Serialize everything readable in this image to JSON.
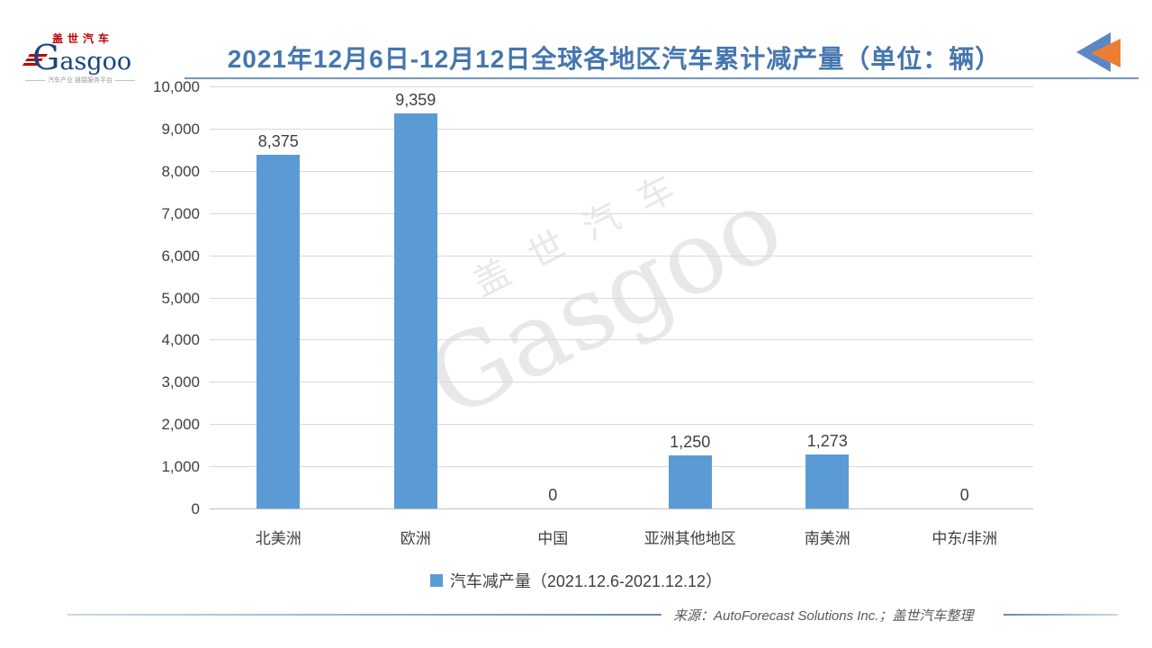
{
  "header": {
    "logo": {
      "cn": "盖世汽车",
      "en_initial": "G",
      "en_rest": "asgoo",
      "tagline": "汽车产业 链接服务平台"
    },
    "title": "2021年12月6日-12月12日全球各地区汽车累计减产量（单位：辆）",
    "colors": {
      "title": "#4576AE",
      "underline": "#7195BE",
      "arrow_blue": "#5B87C5",
      "arrow_orange": "#ED7D31"
    }
  },
  "chart_data": {
    "type": "bar",
    "title": "2021年12月6日-12月12日全球各地区汽车累计减产量（单位：辆）",
    "categories": [
      "北美洲",
      "欧洲",
      "中国",
      "亚洲其他地区",
      "南美洲",
      "中东/非洲"
    ],
    "values": [
      8375,
      9359,
      0,
      1250,
      1273,
      0
    ],
    "value_labels": [
      "8,375",
      "9,359",
      "0",
      "1,250",
      "1,273",
      "0"
    ],
    "xlabel": "",
    "ylabel": "",
    "ylim": [
      0,
      10000
    ],
    "ytick_step": 1000,
    "ytick_labels": [
      "0",
      "1,000",
      "2,000",
      "3,000",
      "4,000",
      "5,000",
      "6,000",
      "7,000",
      "8,000",
      "9,000",
      "10,000"
    ],
    "grid": true,
    "bar_color": "#5B9BD5",
    "legend": {
      "label": "汽车减产量（2021.12.6-2021.12.12）",
      "position": "bottom"
    }
  },
  "watermark": {
    "line1": "盖世汽车",
    "line2": "Gasgoo"
  },
  "footer": {
    "source": "来源：AutoForecast Solutions Inc.；盖世汽车整理"
  }
}
